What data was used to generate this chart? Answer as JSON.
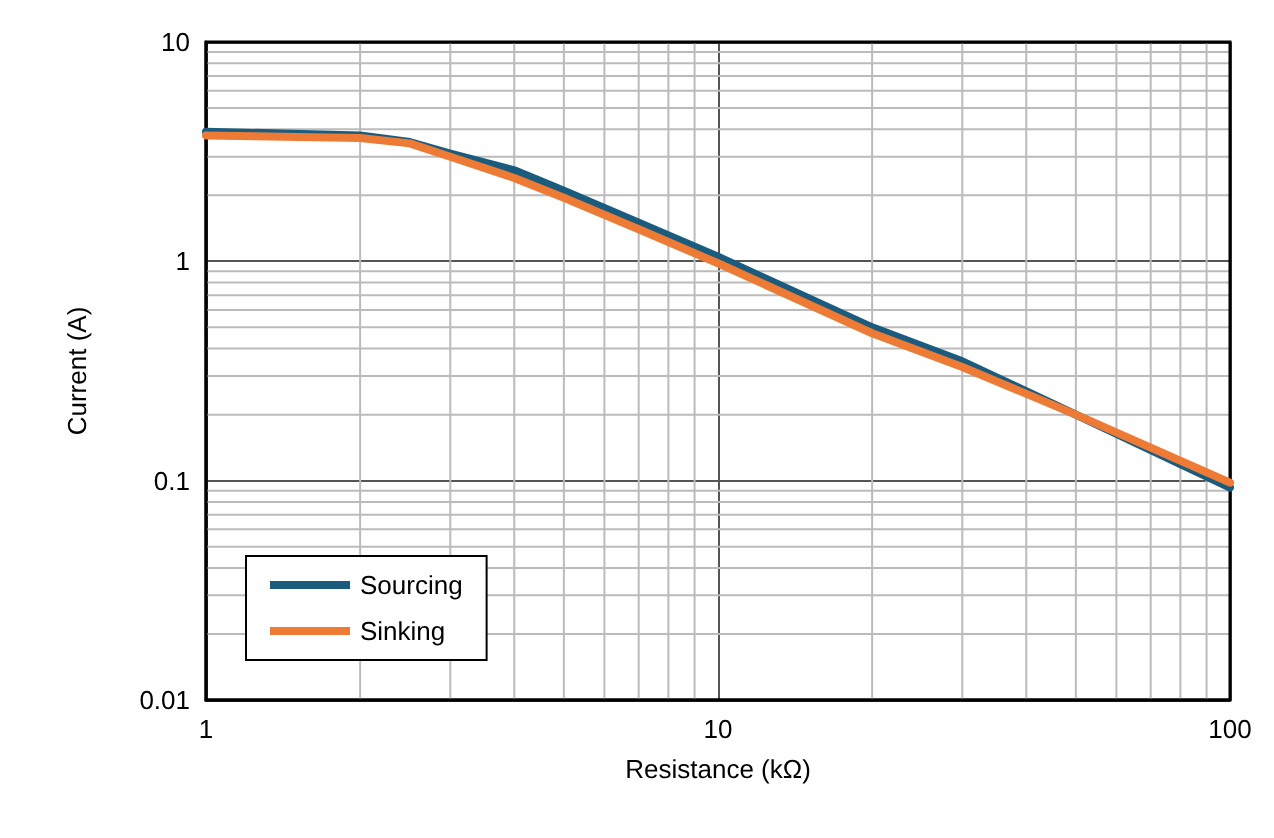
{
  "chart_data": {
    "type": "line",
    "xlabel": "Resistance (kΩ)",
    "ylabel": "Current (A)",
    "log": "xy",
    "grid": true,
    "legend": "bottom left",
    "marker": "none",
    "line_style": "solid",
    "xlim": [
      1,
      100
    ],
    "xticks": [
      1,
      10,
      100
    ],
    "ylim": [
      0.01,
      10
    ],
    "yticks": [
      0.01,
      0.1,
      1,
      10
    ],
    "series": [
      {
        "name": "Sourcing",
        "color": "#1b5c7e",
        "x": [
          1,
          2,
          2.5,
          3,
          4,
          5,
          7,
          10,
          20,
          30,
          50,
          100
        ],
        "values": [
          3.9,
          3.75,
          3.5,
          3.1,
          2.6,
          2.1,
          1.5,
          1.05,
          0.5,
          0.35,
          0.2,
          0.093
        ]
      },
      {
        "name": "Sinking",
        "color": "#ed7a35",
        "x": [
          1,
          2,
          2.5,
          3,
          4,
          5,
          7,
          10,
          20,
          30,
          50,
          100
        ],
        "values": [
          3.75,
          3.65,
          3.45,
          3.0,
          2.4,
          1.95,
          1.4,
          0.98,
          0.47,
          0.33,
          0.2,
          0.098
        ]
      }
    ]
  }
}
